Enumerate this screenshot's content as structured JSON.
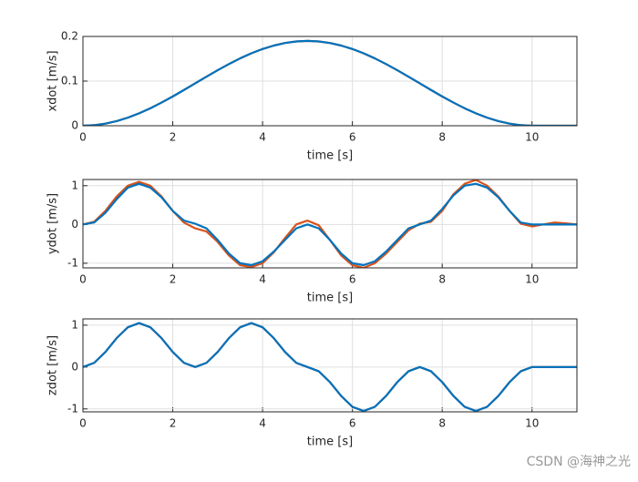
{
  "chart_data": [
    {
      "type": "line",
      "xlabel": "time [s]",
      "ylabel": "xdot [m/s]",
      "x": [
        0,
        0.25,
        0.5,
        0.75,
        1,
        1.25,
        1.5,
        1.75,
        2,
        2.25,
        2.5,
        2.75,
        3,
        3.25,
        3.5,
        3.75,
        4,
        4.25,
        4.5,
        4.75,
        5,
        5.25,
        5.5,
        5.75,
        6,
        6.25,
        6.5,
        6.75,
        7,
        7.25,
        7.5,
        7.75,
        8,
        8.25,
        8.5,
        8.75,
        9,
        9.25,
        9.5,
        9.75,
        10,
        10.25,
        10.5,
        10.75,
        11
      ],
      "series": [
        {
          "color": "#d95319",
          "values": [
            0,
            0.0012,
            0.0047,
            0.0104,
            0.0181,
            0.0278,
            0.0391,
            0.0519,
            0.0656,
            0.0801,
            0.095,
            0.1099,
            0.1244,
            0.1381,
            0.1509,
            0.1622,
            0.1719,
            0.1796,
            0.1853,
            0.1888,
            0.19,
            0.1888,
            0.1853,
            0.1796,
            0.1719,
            0.1622,
            0.1509,
            0.1381,
            0.1244,
            0.1099,
            0.095,
            0.0801,
            0.0656,
            0.0519,
            0.0391,
            0.0278,
            0.0181,
            0.0104,
            0.0047,
            0.0012,
            0,
            0,
            0,
            0,
            0
          ]
        },
        {
          "color": "#0072bd",
          "values": [
            0,
            0.0012,
            0.0047,
            0.0104,
            0.0181,
            0.0278,
            0.0391,
            0.0519,
            0.0656,
            0.0801,
            0.095,
            0.1099,
            0.1244,
            0.1381,
            0.1509,
            0.1622,
            0.1719,
            0.1796,
            0.1853,
            0.1888,
            0.19,
            0.1888,
            0.1853,
            0.1796,
            0.1719,
            0.1622,
            0.1509,
            0.1381,
            0.1244,
            0.1099,
            0.095,
            0.0801,
            0.0656,
            0.0519,
            0.0391,
            0.0278,
            0.0181,
            0.0104,
            0.0047,
            0.0012,
            0,
            0,
            0,
            0,
            0
          ]
        }
      ],
      "xlim": [
        0,
        11
      ],
      "xticks": [
        0,
        2,
        4,
        6,
        8,
        10
      ],
      "ylim": [
        0,
        0.2
      ],
      "yticks": [
        0,
        0.1,
        0.2
      ],
      "grid": true
    },
    {
      "type": "line",
      "xlabel": "time [s]",
      "ylabel": "ydot [m/s]",
      "x": [
        0,
        0.25,
        0.5,
        0.75,
        1,
        1.25,
        1.5,
        1.75,
        2,
        2.25,
        2.5,
        2.75,
        3,
        3.25,
        3.5,
        3.75,
        4,
        4.25,
        4.5,
        4.75,
        5,
        5.25,
        5.5,
        5.75,
        6,
        6.25,
        6.5,
        6.75,
        7,
        7.25,
        7.5,
        7.75,
        8,
        8.25,
        8.5,
        8.75,
        9,
        9.25,
        9.5,
        9.75,
        10,
        10.25,
        10.5,
        10.75,
        11
      ],
      "series": [
        {
          "color": "#d95319",
          "values": [
            0,
            0.07,
            0.35,
            0.72,
            1.0,
            1.1,
            1.0,
            0.72,
            0.35,
            0.05,
            -0.1,
            -0.18,
            -0.45,
            -0.8,
            -1.05,
            -1.1,
            -1.0,
            -0.72,
            -0.35,
            0.0,
            0.1,
            -0.02,
            -0.4,
            -0.8,
            -1.05,
            -1.12,
            -1.0,
            -0.75,
            -0.45,
            -0.15,
            0.02,
            0.07,
            0.35,
            0.78,
            1.05,
            1.15,
            1.0,
            0.72,
            0.35,
            0.02,
            -0.05,
            0.0,
            0.05,
            0.03,
            0.0
          ]
        },
        {
          "color": "#0072bd",
          "values": [
            0,
            0.05,
            0.3,
            0.65,
            0.95,
            1.05,
            0.95,
            0.7,
            0.35,
            0.1,
            0.02,
            -0.1,
            -0.4,
            -0.75,
            -1.0,
            -1.05,
            -0.95,
            -0.7,
            -0.4,
            -0.1,
            0,
            -0.1,
            -0.4,
            -0.75,
            -1.0,
            -1.05,
            -0.95,
            -0.7,
            -0.4,
            -0.1,
            0,
            0.1,
            0.4,
            0.75,
            1.0,
            1.05,
            0.95,
            0.7,
            0.35,
            0.05,
            0,
            0,
            0,
            0,
            0
          ]
        }
      ],
      "xlim": [
        0,
        11
      ],
      "xticks": [
        0,
        2,
        4,
        6,
        8,
        10
      ],
      "ylim": [
        -1.12,
        1.16
      ],
      "yticks": [
        -1,
        0,
        1
      ],
      "grid": true
    },
    {
      "type": "line",
      "xlabel": "time [s]",
      "ylabel": "zdot [m/s]",
      "x": [
        0,
        0.25,
        0.5,
        0.75,
        1,
        1.25,
        1.5,
        1.75,
        2,
        2.25,
        2.5,
        2.75,
        3,
        3.25,
        3.5,
        3.75,
        4,
        4.25,
        4.5,
        4.75,
        5,
        5.25,
        5.5,
        5.75,
        6,
        6.25,
        6.5,
        6.75,
        7,
        7.25,
        7.5,
        7.75,
        8,
        8.25,
        8.5,
        8.75,
        9,
        9.25,
        9.5,
        9.75,
        10,
        10.25,
        10.5,
        10.75,
        11
      ],
      "series": [
        {
          "color": "#d95319",
          "values": [
            0,
            0.1,
            0.36,
            0.69,
            0.95,
            1.05,
            0.95,
            0.69,
            0.36,
            0.1,
            0,
            0.1,
            0.36,
            0.69,
            0.95,
            1.05,
            0.95,
            0.69,
            0.36,
            0.1,
            0,
            -0.1,
            -0.36,
            -0.69,
            -0.95,
            -1.05,
            -0.95,
            -0.69,
            -0.36,
            -0.1,
            0,
            -0.1,
            -0.36,
            -0.69,
            -0.95,
            -1.05,
            -0.95,
            -0.69,
            -0.36,
            -0.1,
            0,
            0,
            0,
            0,
            0
          ]
        },
        {
          "color": "#0072bd",
          "values": [
            0,
            0.1,
            0.36,
            0.69,
            0.95,
            1.05,
            0.95,
            0.69,
            0.36,
            0.1,
            0,
            0.1,
            0.36,
            0.69,
            0.95,
            1.05,
            0.95,
            0.69,
            0.36,
            0.1,
            0,
            -0.1,
            -0.36,
            -0.69,
            -0.95,
            -1.05,
            -0.95,
            -0.69,
            -0.36,
            -0.1,
            0,
            -0.1,
            -0.36,
            -0.69,
            -0.95,
            -1.05,
            -0.95,
            -0.69,
            -0.36,
            -0.1,
            0,
            0,
            0,
            0,
            0
          ]
        }
      ],
      "xlim": [
        0,
        11
      ],
      "xticks": [
        0,
        2,
        4,
        6,
        8,
        10
      ],
      "ylim": [
        -1.07,
        1.15
      ],
      "yticks": [
        -1,
        0,
        1
      ],
      "grid": true
    }
  ],
  "watermark": "CSDN @海神之光"
}
